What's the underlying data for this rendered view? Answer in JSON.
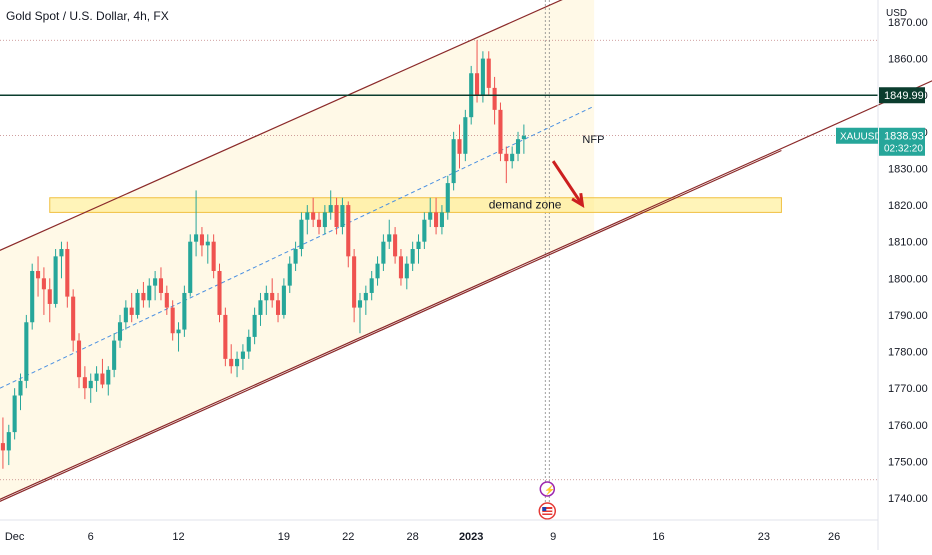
{
  "header": {
    "title": "Gold Spot / U.S. Dollar, 4h, FX"
  },
  "colors": {
    "up": "#26a69a",
    "down": "#ef5350",
    "channel": "#8b2a2a",
    "channel_fill": "#fff8e1",
    "zone_fill": "#ffeb80",
    "zone_stroke": "#f0c040",
    "midline": "#4a90e2",
    "hline": "#0b3d2e",
    "arrow": "#cc1f1f",
    "dotted": "#c08080"
  },
  "chart_data": {
    "type": "candlestick",
    "symbol": "XAUUSD",
    "currency_label": "USD",
    "y_ticks": [
      1740,
      1750,
      1760,
      1770,
      1780,
      1790,
      1800,
      1810,
      1820,
      1830,
      1840,
      1850,
      1860,
      1870
    ],
    "y_tick_labels": [
      "1740.00",
      "1750.00",
      "1760.00",
      "1770.00",
      "1780.00",
      "1790.00",
      "1800.00",
      "1810.00",
      "1820.00",
      "1830.00",
      "1840.00",
      "1850.00",
      "1860.00",
      "1870.00"
    ],
    "ylim": [
      1734,
      1876
    ],
    "x_ticks": [
      {
        "label": "Dec",
        "bold": false
      },
      {
        "label": "6",
        "bold": false
      },
      {
        "label": "12",
        "bold": false
      },
      {
        "label": "19",
        "bold": false
      },
      {
        "label": "22",
        "bold": false
      },
      {
        "label": "28",
        "bold": false
      },
      {
        "label": "2023",
        "bold": true
      },
      {
        "label": "9",
        "bold": false
      },
      {
        "label": "16",
        "bold": false
      },
      {
        "label": "23",
        "bold": false
      },
      {
        "label": "26",
        "bold": false
      }
    ],
    "x_tick_bar_index": [
      2,
      15,
      30,
      48,
      59,
      70,
      80,
      94,
      112,
      130,
      142
    ],
    "candles": [
      [
        1755,
        1762,
        1748,
        1753
      ],
      [
        1753,
        1760,
        1749,
        1758
      ],
      [
        1758,
        1770,
        1756,
        1768
      ],
      [
        1768,
        1774,
        1764,
        1772
      ],
      [
        1772,
        1790,
        1770,
        1788
      ],
      [
        1788,
        1804,
        1786,
        1802
      ],
      [
        1802,
        1806,
        1795,
        1800
      ],
      [
        1800,
        1803,
        1790,
        1797
      ],
      [
        1797,
        1800,
        1788,
        1793
      ],
      [
        1793,
        1808,
        1792,
        1806
      ],
      [
        1806,
        1810,
        1800,
        1808
      ],
      [
        1808,
        1810,
        1792,
        1795
      ],
      [
        1795,
        1797,
        1780,
        1783
      ],
      [
        1783,
        1785,
        1770,
        1773
      ],
      [
        1773,
        1776,
        1767,
        1770
      ],
      [
        1770,
        1774,
        1766,
        1772
      ],
      [
        1772,
        1776,
        1769,
        1774
      ],
      [
        1774,
        1778,
        1770,
        1771
      ],
      [
        1771,
        1776,
        1768,
        1775
      ],
      [
        1775,
        1785,
        1773,
        1783
      ],
      [
        1783,
        1790,
        1781,
        1788
      ],
      [
        1788,
        1794,
        1786,
        1792
      ],
      [
        1792,
        1796,
        1788,
        1790
      ],
      [
        1790,
        1797,
        1789,
        1796
      ],
      [
        1796,
        1799,
        1792,
        1794
      ],
      [
        1794,
        1800,
        1792,
        1798
      ],
      [
        1798,
        1802,
        1794,
        1800
      ],
      [
        1800,
        1803,
        1794,
        1796
      ],
      [
        1796,
        1798,
        1790,
        1792
      ],
      [
        1792,
        1794,
        1783,
        1785
      ],
      [
        1785,
        1788,
        1780,
        1786
      ],
      [
        1786,
        1798,
        1784,
        1796
      ],
      [
        1796,
        1812,
        1795,
        1810
      ],
      [
        1810,
        1824,
        1806,
        1812
      ],
      [
        1812,
        1814,
        1806,
        1809
      ],
      [
        1809,
        1812,
        1804,
        1810
      ],
      [
        1810,
        1812,
        1800,
        1802
      ],
      [
        1802,
        1804,
        1788,
        1790
      ],
      [
        1790,
        1792,
        1776,
        1778
      ],
      [
        1778,
        1782,
        1774,
        1776
      ],
      [
        1776,
        1780,
        1773,
        1778
      ],
      [
        1778,
        1782,
        1775,
        1780
      ],
      [
        1780,
        1786,
        1778,
        1784
      ],
      [
        1784,
        1792,
        1782,
        1790
      ],
      [
        1790,
        1796,
        1787,
        1794
      ],
      [
        1794,
        1798,
        1790,
        1796
      ],
      [
        1796,
        1800,
        1792,
        1794
      ],
      [
        1794,
        1796,
        1788,
        1790
      ],
      [
        1790,
        1800,
        1789,
        1798
      ],
      [
        1798,
        1806,
        1796,
        1804
      ],
      [
        1804,
        1810,
        1802,
        1808
      ],
      [
        1808,
        1818,
        1806,
        1816
      ],
      [
        1816,
        1820,
        1812,
        1818
      ],
      [
        1818,
        1822,
        1814,
        1816
      ],
      [
        1816,
        1818,
        1812,
        1814
      ],
      [
        1814,
        1820,
        1812,
        1818
      ],
      [
        1818,
        1824,
        1816,
        1820
      ],
      [
        1820,
        1822,
        1812,
        1814
      ],
      [
        1814,
        1822,
        1812,
        1820
      ],
      [
        1820,
        1821,
        1803,
        1806
      ],
      [
        1806,
        1808,
        1788,
        1792
      ],
      [
        1792,
        1796,
        1785,
        1794
      ],
      [
        1794,
        1798,
        1790,
        1796
      ],
      [
        1796,
        1802,
        1794,
        1800
      ],
      [
        1800,
        1806,
        1798,
        1804
      ],
      [
        1804,
        1812,
        1802,
        1810
      ],
      [
        1810,
        1816,
        1808,
        1812
      ],
      [
        1812,
        1814,
        1804,
        1806
      ],
      [
        1806,
        1808,
        1798,
        1800
      ],
      [
        1800,
        1806,
        1797,
        1804
      ],
      [
        1804,
        1810,
        1802,
        1808
      ],
      [
        1808,
        1812,
        1804,
        1810
      ],
      [
        1810,
        1818,
        1808,
        1816
      ],
      [
        1816,
        1822,
        1814,
        1818
      ],
      [
        1818,
        1822,
        1812,
        1814
      ],
      [
        1814,
        1820,
        1812,
        1818
      ],
      [
        1818,
        1828,
        1816,
        1826
      ],
      [
        1826,
        1840,
        1824,
        1838
      ],
      [
        1838,
        1842,
        1830,
        1834
      ],
      [
        1834,
        1846,
        1832,
        1844
      ],
      [
        1844,
        1858,
        1842,
        1856
      ],
      [
        1856,
        1865,
        1848,
        1850
      ],
      [
        1850,
        1862,
        1848,
        1860
      ],
      [
        1860,
        1862,
        1850,
        1852
      ],
      [
        1852,
        1855,
        1842,
        1846
      ],
      [
        1846,
        1848,
        1832,
        1834
      ],
      [
        1834,
        1836,
        1826,
        1832
      ],
      [
        1832,
        1836,
        1830,
        1834
      ],
      [
        1834,
        1840,
        1832,
        1838
      ],
      [
        1838,
        1842,
        1834,
        1838.93
      ]
    ],
    "demand_zone": {
      "label": "demand zone",
      "low": 1818,
      "high": 1822,
      "start_bar": 8,
      "end_bar": 133
    },
    "channel": {
      "upper": {
        "from_bar": 0,
        "from_price": 1808,
        "to_bar": 101,
        "to_price": 1880
      },
      "lower": {
        "from_bar": 0,
        "from_price": 1740,
        "to_bar": 170,
        "to_price": 1862
      },
      "mid": {
        "from_bar": 0,
        "from_price": 1770,
        "to_bar": 101,
        "to_price": 1847
      }
    },
    "resistance_line": {
      "price": 1849.99,
      "label": "1849.99"
    },
    "price_dotted_levels": [
      1865,
      1839,
      1745
    ],
    "vertical_marker_bar": 93,
    "annotation_nfp": {
      "text": "NFP",
      "bar": 99,
      "price": 1838
    },
    "arrow": {
      "from_bar": 94,
      "from_price": 1832,
      "to_bar": 99,
      "to_price": 1820
    },
    "current_price": {
      "symbol": "XAUUSD",
      "value": "1838.93",
      "countdown": "02:32:20"
    },
    "n_bars_visible": 150
  }
}
